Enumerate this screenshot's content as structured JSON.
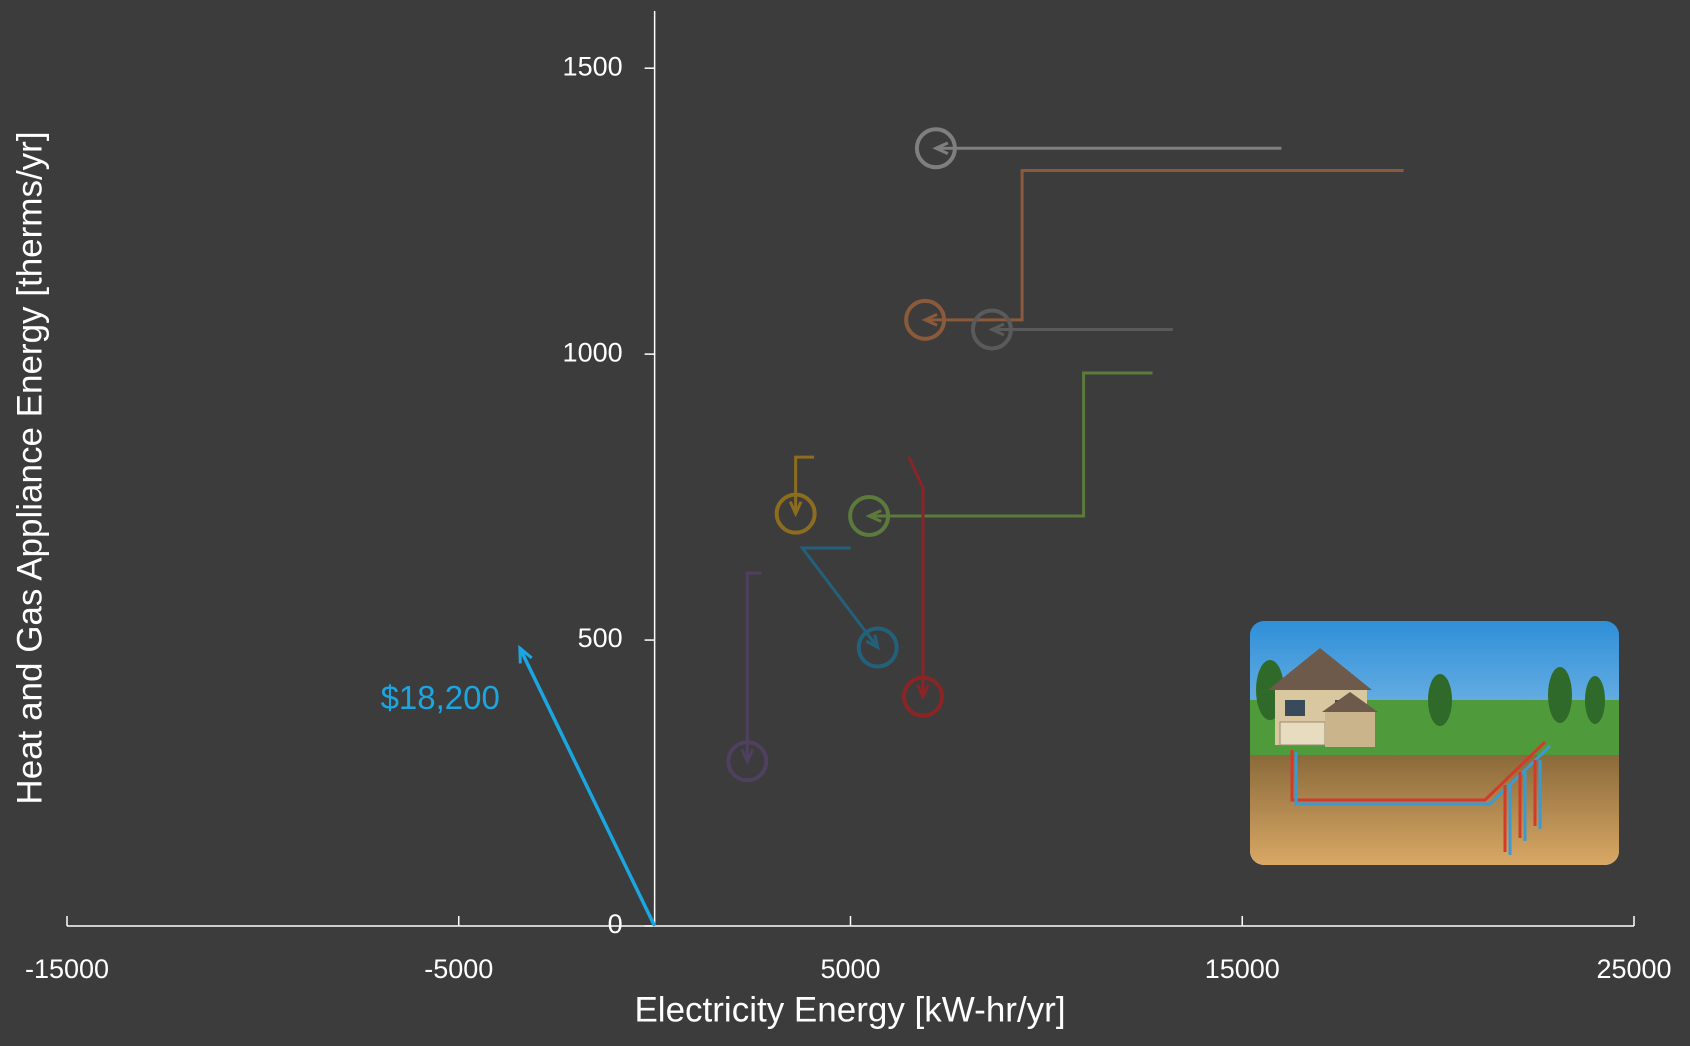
{
  "chart_data": {
    "type": "line",
    "x_label": "Electricity Energy [kW-hr/yr]",
    "y_label": "Heat and Gas Appliance Energy [therms/yr]",
    "xlim": [
      -15000,
      25000
    ],
    "xticks": [
      -15000,
      -5000,
      5000,
      15000,
      25000
    ],
    "ylim": [
      0,
      1600
    ],
    "yticks": [
      0,
      500,
      1000,
      1500
    ],
    "series": [
      {
        "color": "#7f7f7f",
        "x": [
          16000,
          7180
        ],
        "values": [
          1360,
          1360
        ]
      },
      {
        "color": "#8a5a3a",
        "x": [
          19120,
          9380,
          9380,
          6905
        ],
        "values": [
          1321,
          1321,
          1060,
          1060
        ]
      },
      {
        "color": "#5a5a5a",
        "x": [
          13230,
          8610
        ],
        "values": [
          1043,
          1043
        ]
      },
      {
        "color": "#5b7a3c",
        "x": [
          12710,
          10950,
          10950,
          5475
        ],
        "values": [
          967,
          967,
          717,
          717
        ]
      },
      {
        "color": "#8b2525",
        "x": [
          6490,
          6850,
          6850
        ],
        "values": [
          820,
          766,
          401
        ]
      },
      {
        "color": "#8c6d20",
        "x": [
          4070,
          3600,
          3600
        ],
        "values": [
          820,
          820,
          721
        ]
      },
      {
        "color": "#23607a",
        "x": [
          5007,
          3770,
          5695
        ],
        "values": [
          661,
          661,
          487
        ]
      },
      {
        "color": "#4f405f",
        "x": [
          2724,
          2366,
          2366
        ],
        "values": [
          617,
          617,
          288
        ]
      }
    ],
    "vector": {
      "color": "#1ba6e2",
      "x": [
        0,
        -3440
      ],
      "values": [
        0,
        486
      ],
      "label": "$18,200"
    }
  }
}
